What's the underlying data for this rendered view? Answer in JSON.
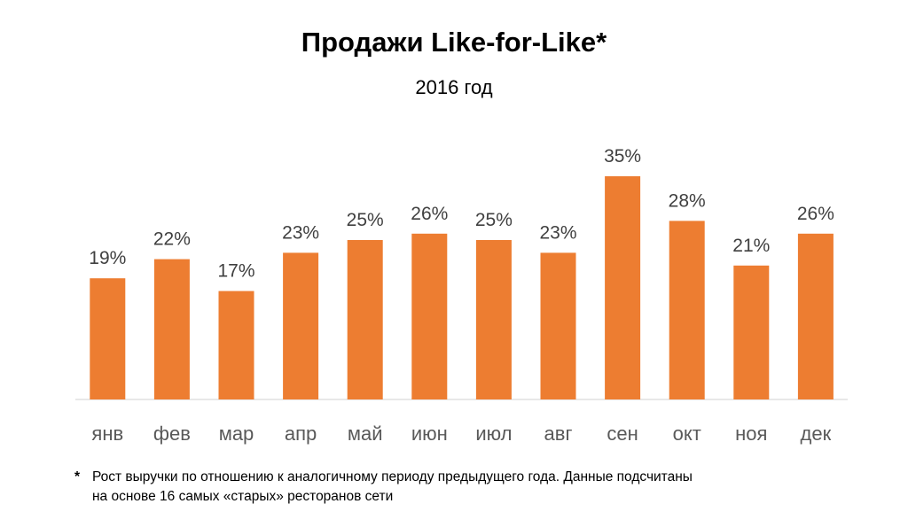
{
  "title": "Продажи Like-for-Like*",
  "subtitle": "2016 год",
  "footnote": {
    "marker": "*",
    "text": "Рост выручки по отношению к аналогичному периоду предыдущего года. Данные подсчитаны на основе 16 самых «старых» ресторанов сети"
  },
  "colors": {
    "bar": "#ED7D31",
    "axis": "#D9D9D9",
    "value_label": "#404040",
    "category_label": "#595959"
  },
  "chart_data": {
    "type": "bar",
    "title": "Продажи Like-for-Like*",
    "subtitle": "2016 год",
    "categories": [
      "янв",
      "фев",
      "мар",
      "апр",
      "май",
      "июн",
      "июл",
      "авг",
      "сен",
      "окт",
      "ноя",
      "дек"
    ],
    "values": [
      19,
      22,
      17,
      23,
      25,
      26,
      25,
      23,
      35,
      28,
      21,
      26
    ],
    "data_labels": [
      "19%",
      "22%",
      "17%",
      "23%",
      "25%",
      "26%",
      "25%",
      "23%",
      "35%",
      "28%",
      "21%",
      "26%"
    ],
    "xlabel": "",
    "ylabel": "",
    "ylim": [
      0,
      35
    ],
    "grid": false,
    "legend": false
  }
}
